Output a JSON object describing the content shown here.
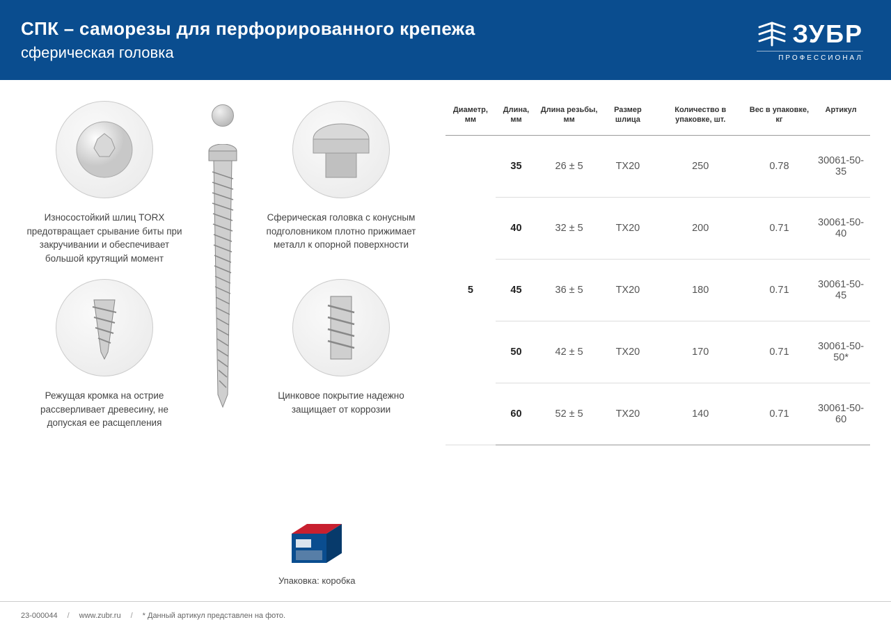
{
  "header": {
    "title": "СПК – саморезы для перфорированного крепежа",
    "subtitle": "сферическая головка",
    "logo_text": "ЗУБР",
    "logo_sub": "ПРОФЕССИОНАЛ"
  },
  "colors": {
    "header_bg": "#0a4d8f",
    "text": "#333333",
    "muted": "#555555",
    "border": "#cccccc"
  },
  "features": [
    {
      "position": "top-left",
      "text": "Износостойкий шлиц TORX предотвращает срывание биты при закручивании и обеспечивает большой крутящий момент"
    },
    {
      "position": "top-right",
      "text": "Сферическая головка с конусным подголовником плотно прижимает металл к опорной поверхности"
    },
    {
      "position": "bottom-left",
      "text": "Режущая кромка на острие рассверливает древесину, не допуская ее расщепления"
    },
    {
      "position": "bottom-right",
      "text": "Цинковое покрытие надежно защищает от коррозии"
    }
  ],
  "table": {
    "headers": [
      "Диаметр, мм",
      "Длина, мм",
      "Длина резьбы, мм",
      "Размер шлица",
      "Количество в упаковке, шт.",
      "Вес в упаковке, кг",
      "Артикул"
    ],
    "diameter_value": "5",
    "rows": [
      {
        "length": "35",
        "thread": "26 ± 5",
        "slot": "TX20",
        "qty": "250",
        "weight": "0.78",
        "sku": "30061-50-35"
      },
      {
        "length": "40",
        "thread": "32 ± 5",
        "slot": "TX20",
        "qty": "200",
        "weight": "0.71",
        "sku": "30061-50-40"
      },
      {
        "length": "45",
        "thread": "36 ± 5",
        "slot": "TX20",
        "qty": "180",
        "weight": "0.71",
        "sku": "30061-50-45"
      },
      {
        "length": "50",
        "thread": "42 ± 5",
        "slot": "TX20",
        "qty": "170",
        "weight": "0.71",
        "sku": "30061-50-50*"
      },
      {
        "length": "60",
        "thread": "52 ± 5",
        "slot": "TX20",
        "qty": "140",
        "weight": "0.71",
        "sku": "30061-50-60"
      }
    ]
  },
  "package": {
    "label": "Упаковка: коробка",
    "box_colors": {
      "top": "#c8202f",
      "front": "#0a4d8f",
      "side": "#073a6b"
    }
  },
  "footer": {
    "code": "23-000044",
    "url": "www.zubr.ru",
    "note": "* Данный артикул представлен на фото."
  }
}
